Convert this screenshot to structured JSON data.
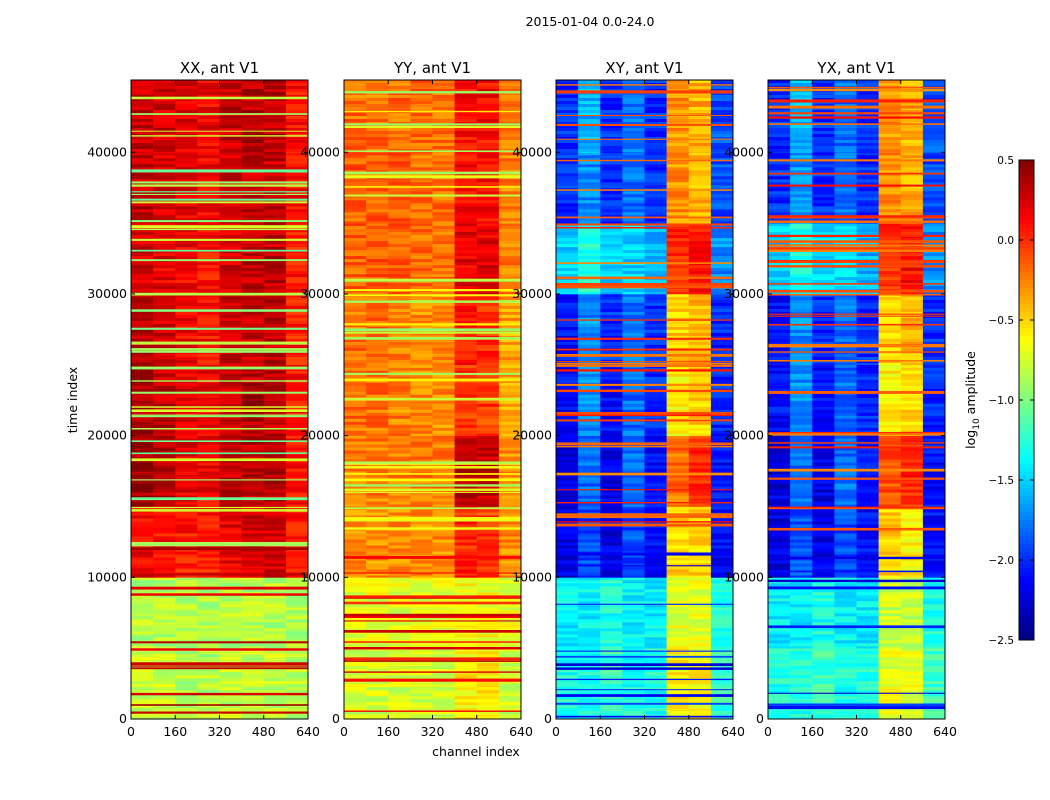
{
  "chart_data": {
    "type": "heatmap",
    "title": "2015-01-04 0.0-24.0",
    "xlabel": "channel index",
    "ylabel": "time index",
    "xlim": [
      0,
      640
    ],
    "ylim": [
      0,
      45100
    ],
    "x_ticks": [
      0,
      160,
      320,
      480,
      640
    ],
    "y_ticks": [
      0,
      10000,
      20000,
      30000,
      40000
    ],
    "x_tick_labels": [
      "0",
      "160",
      "320",
      "480",
      "640"
    ],
    "y_tick_labels": [
      "0",
      "10000",
      "20000",
      "30000",
      "40000"
    ],
    "time_bins": [
      0,
      5000,
      10000,
      15000,
      20000,
      25000,
      30000,
      35000,
      40000,
      45100
    ],
    "channel_bins": [
      0,
      80,
      160,
      240,
      320,
      400,
      480,
      560,
      640
    ],
    "colorbar": {
      "label_main": "log",
      "label_sub": "10",
      "label_rest": " amplitude",
      "range": [
        -2.5,
        0.5
      ],
      "ticks": [
        0.5,
        0.0,
        -0.5,
        -1.0,
        -1.5,
        -2.0,
        -2.5
      ],
      "tick_labels": [
        "0.5",
        "0.0",
        "−0.5",
        "−1.0",
        "−1.5",
        "−2.0",
        "−2.5"
      ],
      "colormap": "jet"
    },
    "panels": [
      {
        "title": "XX, ant V1",
        "stripe_above": -0.9,
        "stripe_below": 0.25,
        "values": [
          [
            -0.8,
            -0.8,
            -0.85,
            -0.85,
            -0.8,
            -0.8,
            -0.8,
            -0.85
          ],
          [
            -0.85,
            -0.85,
            -0.85,
            -0.85,
            -0.85,
            -0.85,
            -0.85,
            -0.85
          ],
          [
            0.15,
            0.1,
            0.05,
            0.05,
            0.2,
            0.25,
            0.25,
            0.05
          ],
          [
            0.4,
            0.3,
            0.2,
            0.15,
            0.3,
            0.35,
            0.35,
            0.1
          ],
          [
            0.4,
            0.3,
            0.2,
            0.15,
            0.3,
            0.35,
            0.3,
            0.1
          ],
          [
            0.35,
            0.25,
            0.15,
            0.1,
            0.25,
            0.3,
            0.3,
            0.05
          ],
          [
            0.25,
            0.2,
            0.15,
            0.1,
            0.25,
            0.3,
            0.3,
            0.05
          ],
          [
            0.3,
            0.25,
            0.2,
            0.15,
            0.25,
            0.3,
            0.3,
            0.1
          ],
          [
            0.3,
            0.25,
            0.2,
            0.15,
            0.3,
            0.35,
            0.3,
            0.1
          ]
        ]
      },
      {
        "title": "YY, ant V1",
        "stripe_above": -0.75,
        "stripe_below": 0.1,
        "values": [
          [
            -0.75,
            -0.75,
            -0.75,
            -0.75,
            -0.75,
            -0.6,
            -0.6,
            -0.75
          ],
          [
            -0.7,
            -0.7,
            -0.7,
            -0.7,
            -0.7,
            -0.65,
            -0.65,
            -0.7
          ],
          [
            -0.3,
            -0.3,
            -0.3,
            -0.3,
            -0.3,
            0.0,
            -0.05,
            -0.3
          ],
          [
            -0.25,
            -0.25,
            -0.25,
            -0.25,
            -0.25,
            0.3,
            0.3,
            -0.3
          ],
          [
            -0.2,
            -0.2,
            -0.25,
            -0.3,
            -0.3,
            -0.05,
            -0.05,
            -0.35
          ],
          [
            -0.2,
            -0.2,
            -0.25,
            -0.3,
            -0.3,
            0.05,
            0.0,
            -0.35
          ],
          [
            -0.15,
            -0.15,
            -0.15,
            -0.2,
            -0.2,
            0.2,
            0.2,
            -0.25
          ],
          [
            -0.15,
            -0.15,
            -0.15,
            -0.2,
            -0.2,
            0.1,
            0.1,
            -0.25
          ],
          [
            -0.2,
            -0.2,
            -0.2,
            -0.2,
            -0.2,
            0.1,
            0.1,
            -0.25
          ]
        ]
      },
      {
        "title": "XY, ant V1",
        "stripe_above": -0.1,
        "stripe_below": -2.1,
        "values": [
          [
            -1.3,
            -1.3,
            -1.2,
            -1.3,
            -1.3,
            -0.6,
            -0.6,
            -1.2
          ],
          [
            -1.4,
            -1.4,
            -1.3,
            -1.4,
            -1.4,
            -0.7,
            -0.7,
            -1.3
          ],
          [
            -2.2,
            -1.9,
            -2.2,
            -1.9,
            -2.1,
            -0.5,
            -0.5,
            -2.1
          ],
          [
            -2.2,
            -1.8,
            -2.2,
            -1.8,
            -2.1,
            -0.2,
            0.0,
            -2.1
          ],
          [
            -2.1,
            -1.7,
            -2.1,
            -1.8,
            -2.0,
            -0.6,
            -0.5,
            -2.0
          ],
          [
            -2.1,
            -1.7,
            -2.0,
            -1.8,
            -2.0,
            -0.5,
            -0.4,
            -2.0
          ],
          [
            -1.5,
            -1.3,
            -1.5,
            -1.5,
            -1.6,
            0.0,
            0.1,
            -1.7
          ],
          [
            -2.0,
            -1.7,
            -2.0,
            -1.8,
            -2.0,
            -0.3,
            -0.4,
            -1.9
          ],
          [
            -2.0,
            -1.6,
            -2.0,
            -1.8,
            -2.0,
            -0.3,
            -0.4,
            -1.9
          ]
        ]
      },
      {
        "title": "YX, ant V1",
        "stripe_above": -0.1,
        "stripe_below": -2.1,
        "values": [
          [
            -1.3,
            -1.3,
            -1.2,
            -1.3,
            -1.3,
            -0.7,
            -0.7,
            -1.2
          ],
          [
            -1.4,
            -1.4,
            -1.3,
            -1.4,
            -1.4,
            -0.8,
            -0.8,
            -1.3
          ],
          [
            -2.2,
            -1.9,
            -2.2,
            -1.9,
            -2.1,
            -0.5,
            -0.6,
            -2.1
          ],
          [
            -2.2,
            -1.8,
            -2.2,
            -1.8,
            -2.1,
            -0.1,
            0.0,
            -2.1
          ],
          [
            -2.1,
            -1.7,
            -2.1,
            -1.8,
            -2.0,
            -0.6,
            -0.5,
            -2.0
          ],
          [
            -2.1,
            -1.7,
            -2.0,
            -1.8,
            -2.0,
            -0.5,
            -0.4,
            -2.0
          ],
          [
            -1.5,
            -1.3,
            -1.5,
            -1.5,
            -1.6,
            0.0,
            0.1,
            -1.7
          ],
          [
            -2.0,
            -1.7,
            -2.0,
            -1.8,
            -2.0,
            -0.3,
            -0.4,
            -1.9
          ],
          [
            -2.0,
            -1.6,
            -2.0,
            -1.8,
            -2.0,
            -0.3,
            -0.4,
            -1.9
          ]
        ]
      }
    ]
  }
}
